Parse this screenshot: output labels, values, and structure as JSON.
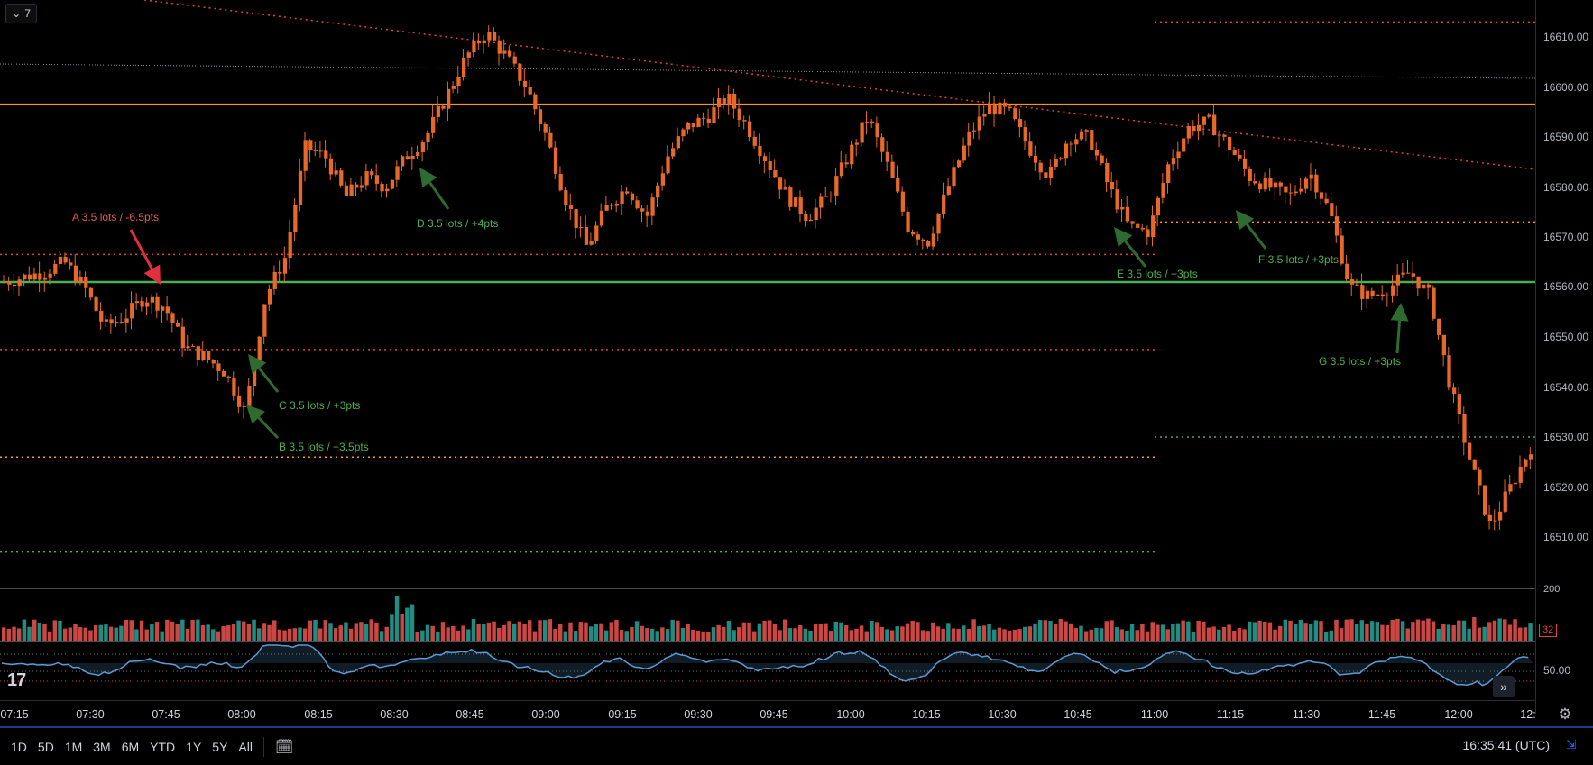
{
  "interval_button": {
    "label": "7",
    "icon": "chevron-down-icon"
  },
  "price_axis": {
    "labels": [
      "16610.00",
      "16600.00",
      "16590.00",
      "16580.00",
      "16570.00",
      "16560.00",
      "16550.00",
      "16540.00",
      "16530.00",
      "16520.00",
      "16510.00"
    ],
    "volume_label": "200",
    "volume_badge": "32",
    "rsi_label": "50.00"
  },
  "time_axis": {
    "labels": [
      "07:15",
      "07:30",
      "07:45",
      "08:00",
      "08:15",
      "08:30",
      "08:45",
      "09:00",
      "09:15",
      "09:30",
      "09:45",
      "10:00",
      "10:15",
      "10:30",
      "10:45",
      "11:00",
      "11:15",
      "11:30",
      "11:45",
      "12:00",
      "12:"
    ]
  },
  "annotations": [
    {
      "id": "A",
      "text": "A 3.5 lots / -6.5pts",
      "color": "#e05a5a"
    },
    {
      "id": "B",
      "text": "B 3.5 lots / +3.5pts",
      "color": "#4caf50"
    },
    {
      "id": "C",
      "text": "C 3.5 lots / +3pts",
      "color": "#4caf50"
    },
    {
      "id": "D",
      "text": "D 3.5 lots / +4pts",
      "color": "#4caf50"
    },
    {
      "id": "E",
      "text": "E 3.5 lots / +3pts",
      "color": "#4caf50"
    },
    {
      "id": "F",
      "text": "F 3.5 lots / +3pts",
      "color": "#4caf50"
    },
    {
      "id": "G",
      "text": "G 3.5 lots / +3pts",
      "color": "#4caf50"
    }
  ],
  "levels": {
    "orange_solid": 16596.5,
    "green_solid": 16561,
    "dotted": [
      16613,
      16573,
      16566.5,
      16547.5,
      16530,
      16526,
      16507
    ]
  },
  "colors": {
    "candle": "#e8682a",
    "vol_up": "#26a69a",
    "vol_down": "#ef5350",
    "rsi_line": "#5b9bd5",
    "orange_line": "#ff9800",
    "green_line": "#4caf50",
    "trend_red": "#e04040"
  },
  "bottom_toolbar": {
    "ranges": [
      "1D",
      "5D",
      "1M",
      "3M",
      "6M",
      "YTD",
      "1Y",
      "5Y",
      "All"
    ],
    "clock": "16:35:41 (UTC)"
  },
  "logo": "17",
  "chart_data": {
    "type": "candlestick",
    "instrument_interval_min": 7,
    "y_range": [
      16503,
      16618
    ],
    "x_labels": [
      "07:15",
      "07:30",
      "07:45",
      "08:00",
      "08:15",
      "08:30",
      "08:45",
      "09:00",
      "09:15",
      "09:30",
      "09:45",
      "10:00",
      "10:15",
      "10:30",
      "10:45",
      "11:00",
      "11:15",
      "11:30",
      "11:45",
      "12:00"
    ],
    "trades": [
      {
        "id": "A",
        "time": "07:45",
        "price": 16561,
        "result_pts": -6.5,
        "lots": 3.5
      },
      {
        "id": "B",
        "time": "08:00",
        "price": 16534,
        "result_pts": 3.5,
        "lots": 3.5
      },
      {
        "id": "C",
        "time": "08:00",
        "price": 16546,
        "result_pts": 3,
        "lots": 3.5
      },
      {
        "id": "D",
        "time": "08:35",
        "price": 16584,
        "result_pts": 4,
        "lots": 3.5
      },
      {
        "id": "E",
        "time": "10:55",
        "price": 16571,
        "result_pts": 3,
        "lots": 3.5
      },
      {
        "id": "F",
        "time": "11:20",
        "price": 16575,
        "result_pts": 3,
        "lots": 3.5
      },
      {
        "id": "G",
        "time": "11:50",
        "price": 16555,
        "result_pts": 3,
        "lots": 3.5
      }
    ],
    "close_path": [
      16561,
      16562,
      16563,
      16565,
      16560,
      16552,
      16554,
      16558,
      16556,
      16548,
      16546,
      16543,
      16535,
      16558,
      16566,
      16588,
      16586,
      16578,
      16582,
      16580,
      16586,
      16590,
      16598,
      16606,
      16611,
      16606,
      16600,
      16590,
      16577,
      16568,
      16576,
      16580,
      16574,
      16586,
      16592,
      16594,
      16598,
      16592,
      16585,
      16578,
      16574,
      16578,
      16586,
      16594,
      16584,
      16572,
      16569,
      16580,
      16590,
      16596,
      16595,
      16588,
      16582,
      16590,
      16590,
      16580,
      16572,
      16571,
      16585,
      16592,
      16593,
      16588,
      16582,
      16580,
      16578,
      16583,
      16575,
      16560,
      16558,
      16560,
      16563,
      16558,
      16540,
      16525,
      16512,
      16520,
      16528
    ]
  }
}
